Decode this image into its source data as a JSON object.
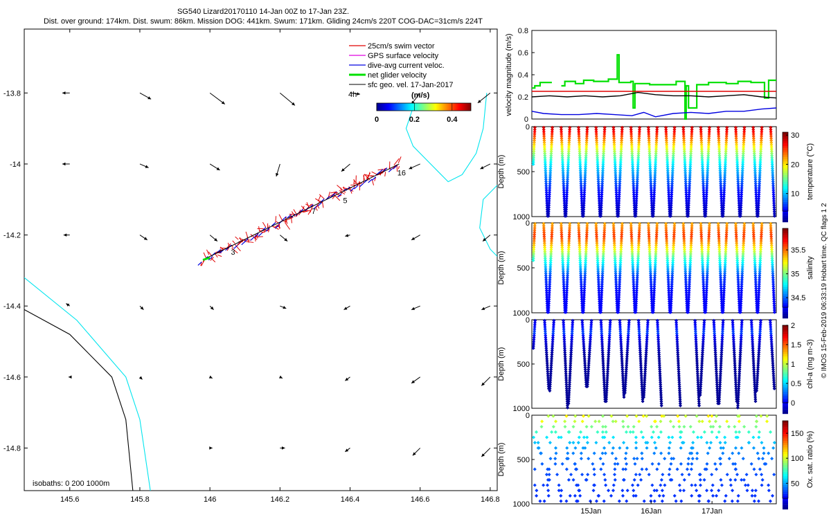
{
  "header": {
    "title": "SG540 Lizard20170110 14-Jan 00Z to 17-Jan 23Z.",
    "subtitle": "Dist. over ground: 174km. Dist. swum: 86km. Mission DOG: 441km. Swum: 171km. Gliding 24cm/s 220T COG-DAC=31cm/s 224T"
  },
  "side_label": "© IMOS 15-Feb-2019 06:33:19 Hobart time. QC flags 1  2",
  "colors": {
    "swim": "#e00000",
    "gps": "#e000e0",
    "current": "#0000e0",
    "net": "#00e000",
    "geo": "#000000",
    "isobath_0": "#000000",
    "isobath_200": "#00e5ee"
  },
  "chart_data": [
    {
      "type": "map",
      "name": "glider-track-map",
      "xlim": [
        145.47,
        146.82
      ],
      "ylim": [
        -14.92,
        -13.62
      ],
      "xticks": [
        "145.6",
        "145.8",
        "146",
        "146.2",
        "146.4",
        "146.6",
        "146.8"
      ],
      "xtick_values": [
        145.6,
        145.8,
        146.0,
        146.2,
        146.4,
        146.6,
        146.8
      ],
      "yticks": [
        "-13.8",
        "-14",
        "-14.2",
        "-14.4",
        "-14.6",
        "-14.8"
      ],
      "ytick_values": [
        -13.8,
        -14.0,
        -14.2,
        -14.4,
        -14.6,
        -14.8
      ],
      "legend": {
        "location": "top-right",
        "items": [
          {
            "label": "25cm/s swim vector",
            "color": "#e00000"
          },
          {
            "label": "GPS surface velocity",
            "color": "#e000e0"
          },
          {
            "label": "dive-avg current veloc.",
            "color": "#0000e0"
          },
          {
            "label": "net glider velocity",
            "color": "#00e000"
          },
          {
            "label": "sfc geo. vel. 17-Jan-2017",
            "color": "#000000"
          }
        ],
        "extra": "4h"
      },
      "colorbar": {
        "title": "(m/s)",
        "ticks": [
          "0",
          "0.2",
          "0.4"
        ],
        "tick_values": [
          0,
          0.2,
          0.4
        ],
        "range": [
          0,
          0.5
        ]
      },
      "isobath_label": "isobaths: 0   200  1000m",
      "track": {
        "start": [
          145.98,
          -14.27
        ],
        "end": [
          146.54,
          -14.0
        ],
        "day_labels": [
          {
            "text": "16",
            "lon": 146.535,
            "lat": -14.032
          },
          {
            "text": "5",
            "lon": 146.38,
            "lat": -14.11
          },
          {
            "text": "7",
            "lon": 146.29,
            "lat": -14.14
          },
          {
            "text": "3",
            "lon": 146.06,
            "lat": -14.255
          }
        ]
      },
      "geo_vectors": [
        {
          "lon": 145.6,
          "lat": -13.8,
          "u": -0.06,
          "v": 0.0
        },
        {
          "lon": 145.8,
          "lat": -13.8,
          "u": 0.09,
          "v": -0.05
        },
        {
          "lon": 146.0,
          "lat": -13.8,
          "u": 0.12,
          "v": -0.09
        },
        {
          "lon": 146.2,
          "lat": -13.8,
          "u": 0.12,
          "v": -0.1
        },
        {
          "lon": 146.4,
          "lat": -13.8,
          "u": 0.08,
          "v": -0.01
        },
        {
          "lon": 146.6,
          "lat": -13.8,
          "u": -0.07,
          "v": -0.09
        },
        {
          "lon": 146.8,
          "lat": -13.8,
          "u": -0.1,
          "v": -0.08
        },
        {
          "lon": 145.6,
          "lat": -14.0,
          "u": -0.06,
          "v": 0.0
        },
        {
          "lon": 145.8,
          "lat": -14.0,
          "u": 0.07,
          "v": -0.03
        },
        {
          "lon": 146.0,
          "lat": -14.0,
          "u": 0.08,
          "v": -0.05
        },
        {
          "lon": 146.2,
          "lat": -14.0,
          "u": -0.03,
          "v": -0.1
        },
        {
          "lon": 146.4,
          "lat": -14.0,
          "u": -0.07,
          "v": -0.06
        },
        {
          "lon": 146.6,
          "lat": -14.0,
          "u": -0.09,
          "v": -0.04
        },
        {
          "lon": 146.8,
          "lat": -14.0,
          "u": -0.08,
          "v": -0.04
        },
        {
          "lon": 145.6,
          "lat": -14.2,
          "u": -0.05,
          "v": 0.0
        },
        {
          "lon": 145.8,
          "lat": -14.2,
          "u": 0.06,
          "v": -0.04
        },
        {
          "lon": 146.0,
          "lat": -14.2,
          "u": 0.06,
          "v": -0.05
        },
        {
          "lon": 146.2,
          "lat": -14.2,
          "u": 0.06,
          "v": -0.05
        },
        {
          "lon": 146.4,
          "lat": -14.2,
          "u": -0.04,
          "v": -0.01
        },
        {
          "lon": 146.6,
          "lat": -14.2,
          "u": -0.07,
          "v": -0.04
        },
        {
          "lon": 146.8,
          "lat": -14.2,
          "u": -0.06,
          "v": -0.05
        },
        {
          "lon": 145.6,
          "lat": -14.4,
          "u": -0.03,
          "v": 0.02
        },
        {
          "lon": 145.8,
          "lat": -14.4,
          "u": 0.03,
          "v": -0.03
        },
        {
          "lon": 146.0,
          "lat": -14.4,
          "u": 0.03,
          "v": -0.03
        },
        {
          "lon": 146.2,
          "lat": -14.4,
          "u": 0.05,
          "v": -0.02
        },
        {
          "lon": 146.4,
          "lat": -14.4,
          "u": -0.05,
          "v": -0.03
        },
        {
          "lon": 146.6,
          "lat": -14.4,
          "u": -0.07,
          "v": -0.03
        },
        {
          "lon": 146.8,
          "lat": -14.4,
          "u": -0.07,
          "v": -0.03
        },
        {
          "lon": 145.6,
          "lat": -14.6,
          "u": -0.01,
          "v": 0.0
        },
        {
          "lon": 145.8,
          "lat": -14.6,
          "u": 0.02,
          "v": -0.02
        },
        {
          "lon": 146.0,
          "lat": -14.6,
          "u": 0.02,
          "v": -0.01
        },
        {
          "lon": 146.2,
          "lat": -14.6,
          "u": 0.02,
          "v": -0.01
        },
        {
          "lon": 146.4,
          "lat": -14.6,
          "u": -0.04,
          "v": -0.03
        },
        {
          "lon": 146.6,
          "lat": -14.6,
          "u": -0.07,
          "v": -0.05
        },
        {
          "lon": 146.8,
          "lat": -14.6,
          "u": -0.07,
          "v": -0.07
        },
        {
          "lon": 145.6,
          "lat": -14.8,
          "u": 0.0,
          "v": 0.0
        },
        {
          "lon": 145.8,
          "lat": -14.8,
          "u": 0.0,
          "v": 0.0
        },
        {
          "lon": 146.0,
          "lat": -14.8,
          "u": 0.02,
          "v": 0.0
        },
        {
          "lon": 146.2,
          "lat": -14.8,
          "u": 0.04,
          "v": 0.0
        },
        {
          "lon": 146.4,
          "lat": -14.8,
          "u": -0.04,
          "v": -0.03
        },
        {
          "lon": 146.6,
          "lat": -14.8,
          "u": -0.06,
          "v": -0.06
        },
        {
          "lon": 146.8,
          "lat": -14.8,
          "u": -0.07,
          "v": -0.07
        }
      ],
      "isobath_0m": [
        [
          145.47,
          -14.41
        ],
        [
          145.6,
          -14.48
        ],
        [
          145.72,
          -14.6
        ],
        [
          145.76,
          -14.72
        ],
        [
          145.78,
          -14.92
        ]
      ],
      "isobath_200m": [
        [
          145.47,
          -14.32
        ],
        [
          145.62,
          -14.44
        ],
        [
          145.76,
          -14.6
        ],
        [
          145.8,
          -14.72
        ],
        [
          145.83,
          -14.92
        ]
      ],
      "isobath_200m_east": [
        [
          146.58,
          -13.84
        ],
        [
          146.56,
          -13.9
        ],
        [
          146.58,
          -13.95
        ],
        [
          146.63,
          -14.0
        ],
        [
          146.68,
          -14.05
        ],
        [
          146.72,
          -14.03
        ],
        [
          146.76,
          -13.97
        ],
        [
          146.78,
          -13.9
        ],
        [
          146.79,
          -13.8
        ]
      ],
      "isobath_200m_east2": [
        [
          146.82,
          -14.06
        ],
        [
          146.78,
          -14.1
        ],
        [
          146.77,
          -14.18
        ],
        [
          146.8,
          -14.24
        ],
        [
          146.82,
          -14.26
        ]
      ]
    },
    {
      "type": "line",
      "name": "velocity-magnitude",
      "ylabel": "velocity magnitude (m/s)",
      "ylim": [
        0,
        0.8
      ],
      "yticks": [
        "0",
        "0.2",
        "0.4",
        "0.6",
        "0.8"
      ],
      "ytick_values": [
        0,
        0.2,
        0.4,
        0.6,
        0.8
      ],
      "xlim": [
        0,
        4.15
      ],
      "series": [
        {
          "name": "net glider velocity",
          "color": "#00e000",
          "x": [
            0,
            0.05,
            0.05,
            0.14,
            0.14,
            0.34,
            0.34,
            0.5,
            0.5,
            0.56,
            0.56,
            0.74,
            0.74,
            0.88,
            0.88,
            1.05,
            1.05,
            1.3,
            1.3,
            1.45,
            1.45,
            1.48,
            1.48,
            1.68,
            1.68,
            1.72,
            1.72,
            1.75,
            1.75,
            2.0,
            2.0,
            2.45,
            2.45,
            2.6,
            2.6,
            2.62,
            2.62,
            2.66,
            2.66,
            2.8,
            2.8,
            3.0,
            3.0,
            3.3,
            3.3,
            3.5,
            3.5,
            3.72,
            3.72,
            3.95,
            3.95,
            4.02,
            4.02,
            4.15
          ],
          "y": [
            0.28,
            0.28,
            0.3,
            0.3,
            0.33,
            0.33,
            null,
            null,
            0.3,
            0.3,
            0.34,
            0.34,
            0.32,
            0.32,
            0.35,
            0.35,
            0.34,
            0.34,
            0.36,
            0.36,
            0.58,
            0.58,
            0.33,
            0.33,
            0.34,
            0.34,
            0.1,
            0.1,
            0.32,
            0.32,
            0.31,
            0.31,
            0.34,
            0.34,
            0.0,
            0.0,
            0.3,
            0.3,
            0.1,
            0.1,
            0.31,
            0.31,
            0.33,
            0.33,
            0.32,
            0.32,
            0.34,
            0.34,
            0.33,
            0.33,
            0.19,
            0.19,
            0.35,
            0.35
          ]
        },
        {
          "name": "25cm/s swim",
          "color": "#e00000",
          "x": [
            0,
            4.15
          ],
          "y": [
            0.25,
            0.25
          ]
        },
        {
          "name": "dive-avg current",
          "color": "#000000",
          "x": [
            0,
            0.3,
            0.6,
            0.9,
            1.2,
            1.5,
            1.8,
            2.1,
            2.4,
            2.7,
            3.0,
            3.3,
            3.6,
            3.9,
            4.15
          ],
          "y": [
            0.2,
            0.21,
            0.2,
            0.21,
            0.2,
            0.21,
            0.24,
            0.22,
            0.21,
            0.21,
            0.2,
            0.21,
            0.22,
            0.2,
            0.19
          ]
        },
        {
          "name": "current",
          "color": "#0000e0",
          "x": [
            0,
            0.2,
            0.5,
            0.8,
            1.1,
            1.4,
            1.7,
            1.9,
            2.1,
            2.4,
            2.7,
            3.0,
            3.3,
            3.6,
            3.9,
            4.15
          ],
          "y": [
            0.07,
            0.05,
            0.04,
            0.04,
            0.05,
            0.04,
            0.03,
            0.06,
            0.02,
            0.05,
            0.06,
            0.05,
            0.07,
            0.07,
            0.09,
            0.1
          ]
        }
      ]
    },
    {
      "type": "scatter",
      "name": "temperature-section",
      "ylabel": "Depth (m)",
      "colorbar_label": "temperature (°C)",
      "ylim": [
        1000,
        0
      ],
      "yticks": [
        "0",
        "500",
        "1000"
      ],
      "ytick_values": [
        0,
        500,
        1000
      ],
      "clim": [
        4,
        31
      ],
      "cticks": [
        "10",
        "20",
        "30"
      ],
      "ctick_values": [
        10,
        20,
        30
      ],
      "profile": [
        [
          0,
          29
        ],
        [
          50,
          28
        ],
        [
          100,
          26
        ],
        [
          150,
          24
        ],
        [
          200,
          22
        ],
        [
          250,
          20
        ],
        [
          300,
          18
        ],
        [
          350,
          16
        ],
        [
          400,
          14
        ],
        [
          500,
          12
        ],
        [
          600,
          10
        ],
        [
          700,
          8
        ],
        [
          800,
          7
        ],
        [
          900,
          6
        ],
        [
          1000,
          5
        ]
      ],
      "dives": 28,
      "max_depth": 1000
    },
    {
      "type": "scatter",
      "name": "salinity-section",
      "ylabel": "Depth (m)",
      "colorbar_label": "salinity",
      "ylim": [
        1000,
        0
      ],
      "yticks": [
        "0",
        "500",
        "1000"
      ],
      "ytick_values": [
        0,
        500,
        1000
      ],
      "clim": [
        34.3,
        35.95
      ],
      "cticks": [
        "34.5",
        "35",
        "35.5"
      ],
      "ctick_values": [
        34.5,
        35.0,
        35.5
      ],
      "profile": [
        [
          0,
          35.45
        ],
        [
          100,
          35.6
        ],
        [
          150,
          35.65
        ],
        [
          200,
          35.55
        ],
        [
          300,
          35.3
        ],
        [
          400,
          35.0
        ],
        [
          500,
          34.8
        ],
        [
          600,
          34.6
        ],
        [
          800,
          34.5
        ],
        [
          1000,
          34.5
        ]
      ],
      "dives": 28,
      "max_depth": 1000
    },
    {
      "type": "scatter",
      "name": "chlorophyll-section",
      "ylabel": "Depth (m)",
      "colorbar_label": "chl-a (mg m-3)",
      "ylim": [
        1000,
        0
      ],
      "yticks": [
        "0",
        "500",
        "1000"
      ],
      "ytick_values": [
        0,
        500,
        1000
      ],
      "clim": [
        0,
        2
      ],
      "cticks": [
        "0",
        "0.5",
        "1",
        "1.5",
        "2"
      ],
      "ctick_values": [
        0,
        0.5,
        1.0,
        1.5,
        2.0
      ],
      "profile": [
        [
          0,
          0.15
        ],
        [
          100,
          0.3
        ],
        [
          150,
          0.4
        ],
        [
          200,
          0.2
        ],
        [
          400,
          0.03
        ],
        [
          1000,
          0.01
        ]
      ],
      "dives": 26,
      "max_depth": 1000,
      "gap_fraction": [
        0.5,
        0.7
      ]
    },
    {
      "type": "scatter",
      "name": "oxygen-section",
      "ylabel": "Depth (m)",
      "colorbar_label": "Ox. sat. ratio (%)",
      "ylim": [
        1000,
        0
      ],
      "yticks": [
        "0",
        "500",
        "1000"
      ],
      "ytick_values": [
        0,
        500,
        1000
      ],
      "clim": [
        20,
        175
      ],
      "cticks": [
        "50",
        "100",
        "150"
      ],
      "ctick_values": [
        50,
        100,
        150
      ],
      "xticks": [
        "15Jan",
        "16Jan",
        "17Jan"
      ],
      "xtick_fraction": [
        0.242,
        0.488,
        0.737
      ],
      "profile": [
        [
          0,
          100
        ],
        [
          100,
          98
        ],
        [
          150,
          95
        ],
        [
          250,
          75
        ],
        [
          400,
          60
        ],
        [
          600,
          52
        ],
        [
          800,
          48
        ],
        [
          1000,
          46
        ]
      ],
      "dives": 26,
      "max_depth": 1000
    }
  ]
}
